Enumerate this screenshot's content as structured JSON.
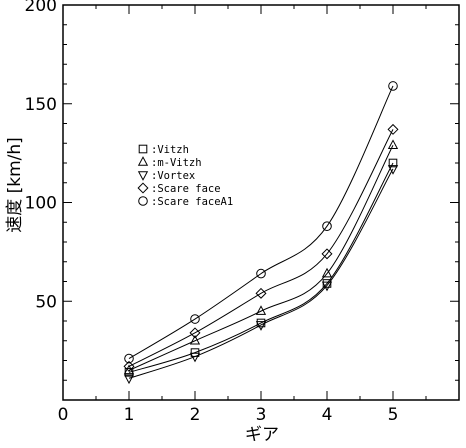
{
  "chart_data": {
    "type": "line",
    "title": "",
    "xlabel": "ギア",
    "ylabel": "速度 [km/h]",
    "xlim": [
      0,
      6
    ],
    "ylim": [
      0,
      200
    ],
    "xticks": [
      0,
      1,
      2,
      3,
      4,
      5
    ],
    "yticks": [
      50,
      100,
      150,
      200
    ],
    "grid": false,
    "legend_placement": "upper-left",
    "x": [
      1,
      2,
      3,
      4,
      5
    ],
    "series": [
      {
        "name": ":Vitzh",
        "marker": "square",
        "values": [
          14,
          24,
          39,
          59,
          120
        ]
      },
      {
        "name": ":m-Vitzh",
        "marker": "triangle-up",
        "values": [
          15,
          30,
          45,
          64,
          129
        ]
      },
      {
        "name": ":Vortex",
        "marker": "triangle-down",
        "values": [
          11,
          22,
          38,
          58,
          117
        ]
      },
      {
        "name": ":Scare face",
        "marker": "diamond",
        "values": [
          17,
          34,
          54,
          74,
          137
        ]
      },
      {
        "name": ":Scare faceA1",
        "marker": "circle",
        "values": [
          21,
          41,
          64,
          88,
          159
        ]
      }
    ]
  }
}
